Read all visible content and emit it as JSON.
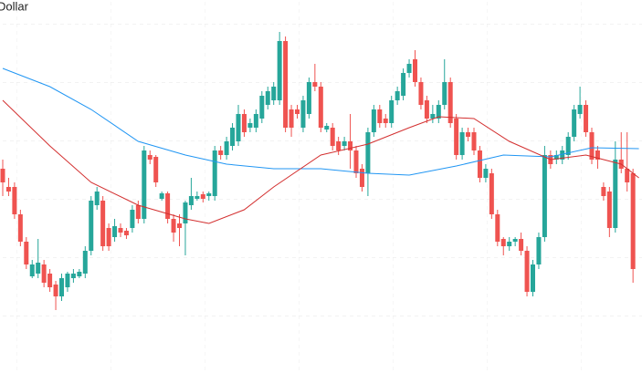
{
  "chart_data": {
    "type": "candlestick",
    "title": "Dollar",
    "up_color": "#26a69a",
    "down_color": "#ef5350",
    "grid": true,
    "ylim": [
      0,
      410
    ],
    "open": [
      225,
      205,
      205,
      175,
      145,
      107,
      110,
      120,
      110,
      98,
      85,
      95,
      105,
      107,
      110,
      135,
      185,
      190,
      160,
      150,
      160,
      157,
      160,
      185,
      170,
      240,
      238,
      192,
      198,
      170,
      165,
      165,
      185,
      192,
      197,
      195,
      195,
      245,
      240,
      250,
      255,
      285,
      270,
      270,
      280,
      295,
      300,
      300,
      365,
      290,
      290,
      270,
      285,
      320,
      315,
      268,
      270,
      255,
      250,
      255,
      245,
      225,
      220,
      265,
      290,
      280,
      275,
      300,
      305,
      330,
      345,
      320,
      300,
      280,
      280,
      295,
      320,
      280,
      240,
      265,
      265,
      245,
      215,
      220,
      175,
      148,
      140,
      145,
      148,
      135,
      90,
      120,
      150,
      240,
      235,
      235,
      240,
      260,
      285,
      295,
      265,
      245,
      205,
      200,
      160,
      235,
      225,
      220
    ],
    "high": [
      235,
      215,
      210,
      180,
      150,
      125,
      148,
      125,
      115,
      102,
      110,
      112,
      115,
      115,
      140,
      195,
      205,
      195,
      165,
      170,
      165,
      160,
      185,
      190,
      250,
      245,
      240,
      200,
      200,
      175,
      175,
      190,
      215,
      200,
      200,
      200,
      250,
      250,
      260,
      275,
      295,
      290,
      280,
      290,
      310,
      315,
      320,
      375,
      370,
      295,
      295,
      305,
      325,
      340,
      320,
      275,
      275,
      260,
      260,
      285,
      250,
      230,
      270,
      295,
      295,
      285,
      305,
      315,
      335,
      345,
      355,
      325,
      305,
      295,
      300,
      345,
      325,
      285,
      270,
      270,
      270,
      250,
      230,
      225,
      180,
      150,
      150,
      150,
      155,
      140,
      125,
      155,
      250,
      245,
      245,
      250,
      265,
      295,
      315,
      300,
      270,
      250,
      210,
      205,
      255,
      265,
      265,
      225
    ],
    "low": [
      195,
      195,
      170,
      140,
      115,
      105,
      105,
      95,
      90,
      70,
      80,
      90,
      100,
      105,
      105,
      130,
      180,
      135,
      135,
      145,
      150,
      148,
      155,
      165,
      165,
      230,
      205,
      190,
      165,
      145,
      140,
      130,
      180,
      190,
      188,
      190,
      190,
      235,
      235,
      245,
      250,
      260,
      265,
      265,
      275,
      290,
      295,
      295,
      265,
      260,
      280,
      265,
      280,
      310,
      265,
      265,
      245,
      240,
      245,
      225,
      215,
      200,
      195,
      260,
      270,
      270,
      270,
      295,
      300,
      325,
      315,
      290,
      275,
      275,
      275,
      290,
      270,
      235,
      235,
      255,
      240,
      210,
      210,
      170,
      140,
      130,
      135,
      140,
      130,
      85,
      85,
      115,
      145,
      225,
      230,
      230,
      235,
      255,
      280,
      260,
      230,
      225,
      190,
      150,
      155,
      220,
      200,
      100
    ],
    "close": [
      210,
      200,
      175,
      145,
      120,
      120,
      122,
      100,
      95,
      85,
      105,
      110,
      110,
      112,
      135,
      190,
      200,
      140,
      140,
      162,
      155,
      152,
      180,
      170,
      245,
      235,
      210,
      198,
      170,
      155,
      160,
      188,
      195,
      195,
      192,
      198,
      245,
      240,
      255,
      270,
      285,
      265,
      275,
      285,
      305,
      310,
      315,
      365,
      270,
      270,
      285,
      300,
      320,
      315,
      270,
      272,
      250,
      245,
      255,
      245,
      220,
      205,
      265,
      290,
      275,
      275,
      300,
      310,
      330,
      340,
      320,
      295,
      280,
      285,
      295,
      320,
      275,
      240,
      265,
      260,
      245,
      215,
      225,
      175,
      145,
      140,
      145,
      148,
      135,
      90,
      120,
      150,
      240,
      230,
      240,
      245,
      260,
      290,
      295,
      265,
      235,
      235,
      195,
      160,
      235,
      225,
      210,
      115
    ],
    "lines": [
      {
        "color": "#2196f3",
        "x": [
          0,
          8,
          15,
          23,
          31,
          38,
          46,
          54,
          62,
          69,
          77,
          85,
          93,
          100,
          108
        ],
        "values": [
          335,
          315,
          290,
          255,
          240,
          230,
          225,
          225,
          220,
          218,
          228,
          240,
          238,
          248,
          247
        ]
      },
      {
        "color": "#d32f2f",
        "x": [
          0,
          8,
          15,
          23,
          31,
          35,
          41,
          46,
          54,
          62,
          69,
          74,
          80,
          86,
          93,
          99,
          105,
          108
        ],
        "values": [
          300,
          250,
          210,
          185,
          170,
          165,
          180,
          205,
          240,
          252,
          270,
          282,
          280,
          255,
          235,
          240,
          230,
          215
        ]
      }
    ]
  }
}
